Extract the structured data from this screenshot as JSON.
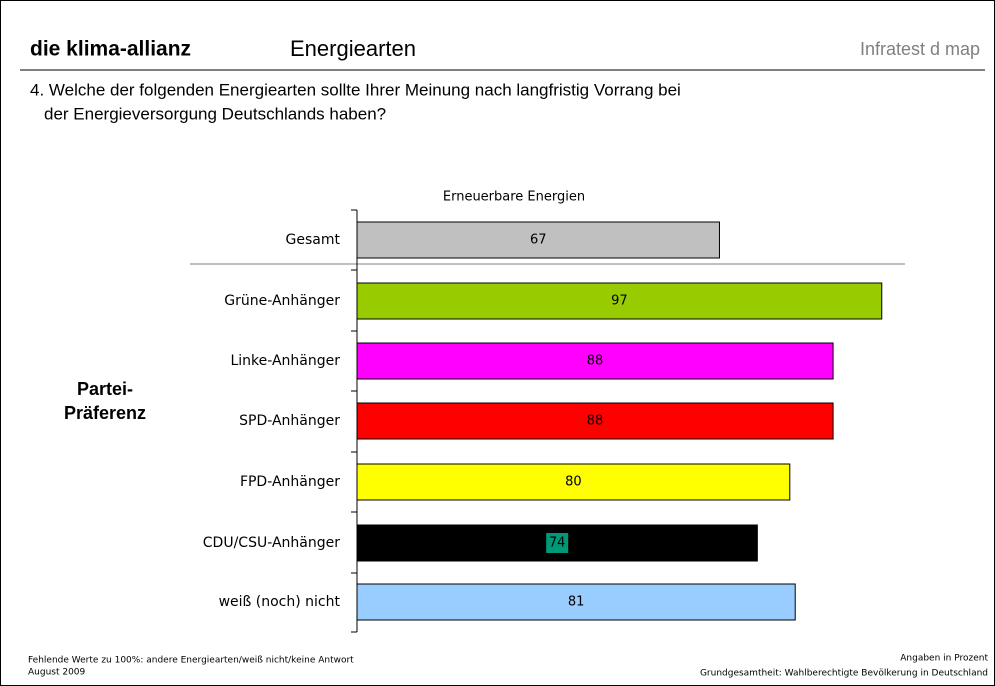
{
  "header": {
    "brand": "die klima-allianz",
    "topic": "Energiearten",
    "source": "Infratest d map"
  },
  "question": [
    "4. Welche der folgenden Energiearten sollte Ihrer Meinung nach langfristig Vorrang bei",
    "der Energieversorgung Deutschlands haben?"
  ],
  "chart_data": {
    "type": "hbar",
    "categories": [
      "Gesamt",
      "Grüne-Anhänger",
      "Linke-Anhänger",
      "SPD-Anhänger",
      "FPD-Anhänger",
      "CDU/CSU-Anhänger",
      "weiß (noch) nicht"
    ],
    "group_label": [
      "Partei-",
      "Präferenz"
    ],
    "series": [
      {
        "name": "Erneuerbare Energien",
        "values": [
          67,
          97,
          88,
          88,
          80,
          74,
          81
        ],
        "colors": [
          "#c0c0c0",
          "#99cc00",
          "#ff00ff",
          "#ff0000",
          "#ffff00",
          "#000000",
          "#99ccff"
        ]
      }
    ],
    "xlim": [
      0,
      100
    ]
  },
  "footer": {
    "left": [
      "Fehlende Werte zu 100%: andere Energiearten/weiß nicht/keine Antwort",
      "August 2009"
    ],
    "right": [
      "Angaben in Prozent",
      "Grundgesamtheit: Wahlberechtigte Bevölkerung in Deutschland"
    ]
  }
}
